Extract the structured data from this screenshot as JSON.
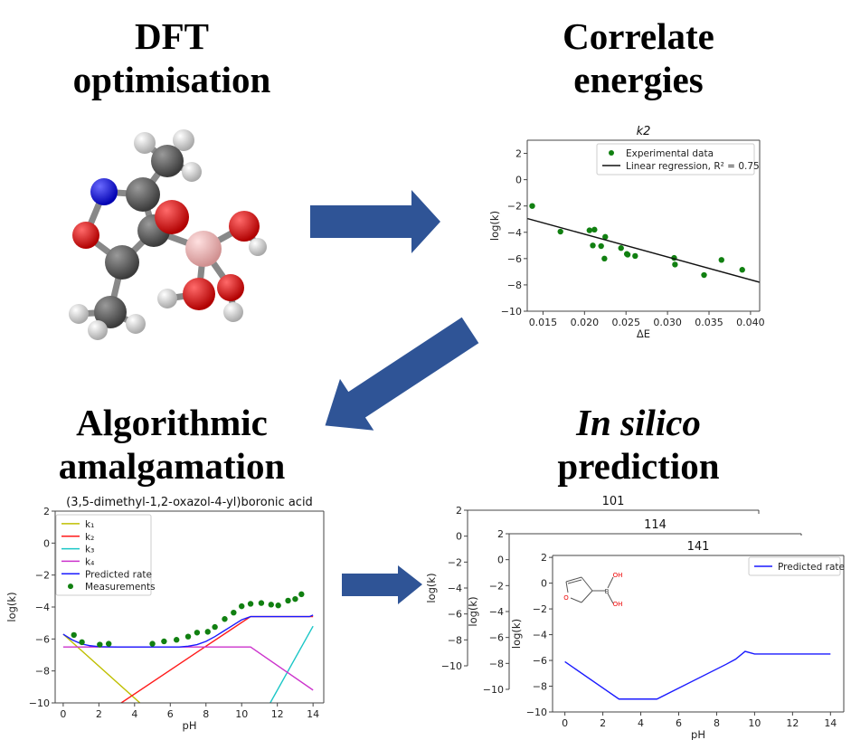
{
  "panels": {
    "dft": {
      "line1": "DFT",
      "line2": "optimisation"
    },
    "correlate": {
      "line1": "Correlate",
      "line2": "energies"
    },
    "amalgamation": {
      "line1": "Algorithmic",
      "line2": "amalgamation"
    },
    "prediction": {
      "line1_italic": "In silico",
      "line2": "prediction"
    }
  },
  "colors": {
    "arrow": "#2f5496",
    "green": "#118011",
    "blue": "#1a1aff"
  },
  "chart_data": [
    {
      "type": "scatter",
      "title": "k2",
      "xlabel": "ΔE",
      "ylabel": "log(k)",
      "xlim": [
        0.0131,
        0.0411
      ],
      "ylim": [
        -10,
        3
      ],
      "xticks": [
        0.015,
        0.02,
        0.025,
        0.03,
        0.035,
        0.04
      ],
      "xticklabels": [
        "0.015",
        "0.020",
        "0.025",
        "0.030",
        "0.035",
        "0.040"
      ],
      "yticks": [
        -10,
        -8,
        -6,
        -4,
        -2,
        0,
        2
      ],
      "yticklabels": [
        "−10",
        "−8",
        "−6",
        "−4",
        "−2",
        "0",
        "2"
      ],
      "legend_position": "top-right",
      "series": [
        {
          "name": "Experimental data",
          "kind": "scatter",
          "color": "#118011",
          "points": [
            [
              0.0137,
              -2.0
            ],
            [
              0.0171,
              -3.95
            ],
            [
              0.0206,
              -3.85
            ],
            [
              0.0212,
              -3.8
            ],
            [
              0.021,
              -5.0
            ],
            [
              0.0225,
              -4.35
            ],
            [
              0.022,
              -5.05
            ],
            [
              0.0224,
              -6.0
            ],
            [
              0.0244,
              -5.2
            ],
            [
              0.0251,
              -5.65
            ],
            [
              0.0252,
              -5.7
            ],
            [
              0.0261,
              -5.8
            ],
            [
              0.0308,
              -5.95
            ],
            [
              0.0309,
              -6.45
            ],
            [
              0.0344,
              -7.25
            ],
            [
              0.0365,
              -6.1
            ],
            [
              0.039,
              -6.85
            ]
          ]
        },
        {
          "name": "Linear regression, R² = 0.75",
          "kind": "line",
          "color": "#111111",
          "points": [
            [
              0.0131,
              -2.95
            ],
            [
              0.0411,
              -7.8
            ]
          ]
        }
      ]
    },
    {
      "type": "line",
      "title": "(3,5-dimethyl-1,2-oxazol-4-yl)boronic acid",
      "xlabel": "pH",
      "ylabel": "log(k)",
      "xlim": [
        -0.45,
        14.6
      ],
      "ylim": [
        -10,
        2
      ],
      "xticks": [
        0,
        2,
        4,
        6,
        8,
        10,
        12,
        14
      ],
      "xticklabels": [
        "0",
        "2",
        "4",
        "6",
        "8",
        "10",
        "12",
        "14"
      ],
      "yticks": [
        -10,
        -8,
        -6,
        -4,
        -2,
        0,
        2
      ],
      "yticklabels": [
        "−10",
        "−8",
        "−6",
        "−4",
        "−2",
        "0",
        "2"
      ],
      "legend_position": "top-left",
      "series": [
        {
          "name": "k₁",
          "kind": "line",
          "color": "#bfbf00",
          "points": [
            [
              0,
              -5.7
            ],
            [
              4.3,
              -10
            ]
          ]
        },
        {
          "name": "k₂",
          "kind": "line",
          "color": "#ff1a1a",
          "points": [
            [
              3.25,
              -10
            ],
            [
              8,
              -6.45
            ],
            [
              10.5,
              -4.6
            ],
            [
              14,
              -4.6
            ]
          ]
        },
        {
          "name": "k₃",
          "kind": "line",
          "color": "#1ac6c6",
          "points": [
            [
              11.6,
              -10
            ],
            [
              14,
              -5.2
            ]
          ]
        },
        {
          "name": "k₄",
          "kind": "line",
          "color": "#cc33cc",
          "points": [
            [
              0,
              -6.5
            ],
            [
              10.5,
              -6.5
            ],
            [
              14,
              -9.2
            ]
          ]
        },
        {
          "name": "Predicted rate",
          "kind": "line",
          "color": "#1a1aff",
          "points": [
            [
              0,
              -5.7
            ],
            [
              0.5,
              -6.05
            ],
            [
              1,
              -6.3
            ],
            [
              1.5,
              -6.42
            ],
            [
              2,
              -6.48
            ],
            [
              3,
              -6.5
            ],
            [
              6.5,
              -6.5
            ],
            [
              7,
              -6.45
            ],
            [
              7.5,
              -6.35
            ],
            [
              8,
              -6.15
            ],
            [
              8.5,
              -5.85
            ],
            [
              9,
              -5.5
            ],
            [
              9.5,
              -5.15
            ],
            [
              10,
              -4.8
            ],
            [
              10.5,
              -4.6
            ],
            [
              13.8,
              -4.6
            ],
            [
              14,
              -4.5
            ]
          ]
        },
        {
          "name": "Measurements",
          "kind": "scatter",
          "color": "#118011",
          "points": [
            [
              0.6,
              -5.75
            ],
            [
              1.05,
              -6.2
            ],
            [
              2.05,
              -6.35
            ],
            [
              2.55,
              -6.3
            ],
            [
              5.0,
              -6.3
            ],
            [
              5.65,
              -6.15
            ],
            [
              6.35,
              -6.05
            ],
            [
              7.0,
              -5.85
            ],
            [
              7.5,
              -5.6
            ],
            [
              8.1,
              -5.55
            ],
            [
              8.5,
              -5.25
            ],
            [
              9.05,
              -4.75
            ],
            [
              9.55,
              -4.35
            ],
            [
              10.0,
              -3.95
            ],
            [
              10.5,
              -3.8
            ],
            [
              11.1,
              -3.75
            ],
            [
              11.65,
              -3.85
            ],
            [
              12.05,
              -3.9
            ],
            [
              12.6,
              -3.6
            ],
            [
              13.0,
              -3.5
            ],
            [
              13.35,
              -3.2
            ]
          ]
        }
      ]
    },
    {
      "type": "line",
      "title": "101",
      "ylabel": "log(k)",
      "ylim": [
        -10,
        2
      ],
      "xlim": [
        -0.7,
        14.7
      ],
      "yticks": [
        -10,
        -8,
        -6,
        -4,
        -2,
        0,
        2
      ],
      "yticklabels": [
        "−10",
        "−8",
        "−6",
        "−4",
        "−2",
        "0",
        "2"
      ],
      "series": []
    },
    {
      "type": "line",
      "title": "114",
      "ylabel": "log(k)",
      "ylim": [
        -10,
        2
      ],
      "xlim": [
        -0.7,
        14.7
      ],
      "yticks": [
        -10,
        -8,
        -6,
        -4,
        -2,
        0,
        2
      ],
      "yticklabels": [
        "−10",
        "−8",
        "−6",
        "−4",
        "−2",
        "0",
        "2"
      ],
      "series": []
    },
    {
      "type": "line",
      "title": "141",
      "xlabel": "pH",
      "ylabel": "log(k)",
      "xlim": [
        -0.65,
        14.7
      ],
      "ylim": [
        -10,
        2.15
      ],
      "xticks": [
        0,
        2,
        4,
        6,
        8,
        10,
        12,
        14
      ],
      "xticklabels": [
        "0",
        "2",
        "4",
        "6",
        "8",
        "10",
        "12",
        "14"
      ],
      "yticks": [
        -10,
        -8,
        -6,
        -4,
        -2,
        0,
        2
      ],
      "yticklabels": [
        "−10",
        "−8",
        "−6",
        "−4",
        "−2",
        "0",
        "2"
      ],
      "legend_position": "top-right",
      "structure_labels": {
        "ring_o": "O",
        "boron": "B",
        "oh_top": "OH",
        "oh_bottom": "OH"
      },
      "series": [
        {
          "name": "Predicted rate",
          "kind": "line",
          "color": "#1a1aff",
          "points": [
            [
              0,
              -6.1
            ],
            [
              2.85,
              -9
            ],
            [
              4.85,
              -9
            ],
            [
              8.5,
              -6.3
            ],
            [
              9.0,
              -5.9
            ],
            [
              9.5,
              -5.3
            ],
            [
              10,
              -5.5
            ],
            [
              14,
              -5.5
            ]
          ]
        }
      ]
    }
  ]
}
